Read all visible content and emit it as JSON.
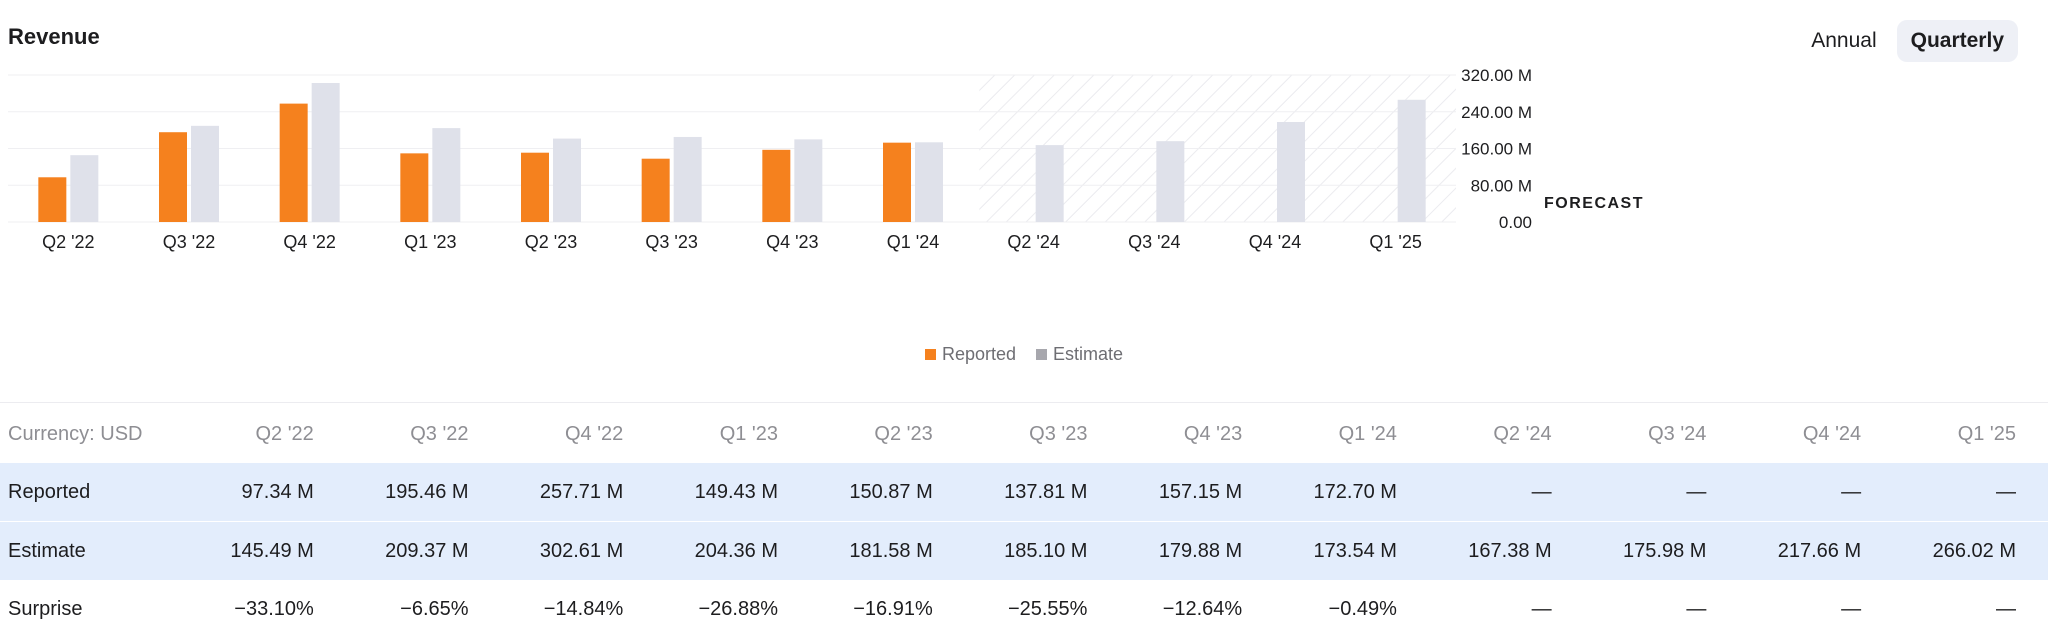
{
  "header": {
    "title": "Revenue",
    "toggle": [
      {
        "label": "Annual",
        "active": false
      },
      {
        "label": "Quarterly",
        "active": true
      }
    ]
  },
  "chart_data": {
    "type": "bar",
    "categories": [
      "Q2 '22",
      "Q3 '22",
      "Q4 '22",
      "Q1 '23",
      "Q2 '23",
      "Q3 '23",
      "Q4 '23",
      "Q1 '24",
      "Q2 '24",
      "Q3 '24",
      "Q4 '24",
      "Q1 '25"
    ],
    "series": [
      {
        "name": "Reported",
        "color": "#f5811e",
        "values": [
          97.34,
          195.46,
          257.71,
          149.43,
          150.87,
          137.81,
          157.15,
          172.7,
          null,
          null,
          null,
          null
        ]
      },
      {
        "name": "Estimate",
        "color": "#dfe1ea",
        "values": [
          145.49,
          209.37,
          302.61,
          204.36,
          181.58,
          185.1,
          179.88,
          173.54,
          167.38,
          175.98,
          217.66,
          266.02
        ]
      }
    ],
    "yticks": [
      "320.00 M",
      "240.00 M",
      "160.00 M",
      "80.00 M",
      "0.00"
    ],
    "ylim": [
      0,
      320
    ],
    "forecast_label": "FORECAST",
    "forecast_start_index": 8,
    "grid": true,
    "legend_position": "bottom"
  },
  "legend": [
    {
      "label": "Reported",
      "color": "#f5811e"
    },
    {
      "label": "Estimate",
      "color": "#a7a7ad"
    }
  ],
  "table": {
    "currency_label": "Currency: USD",
    "columns": [
      "Q2 '22",
      "Q3 '22",
      "Q4 '22",
      "Q1 '23",
      "Q2 '23",
      "Q3 '23",
      "Q4 '23",
      "Q1 '24",
      "Q2 '24",
      "Q3 '24",
      "Q4 '24",
      "Q1 '25"
    ],
    "rows": [
      {
        "label": "Reported",
        "highlight": true,
        "cells": [
          "97.34 M",
          "195.46 M",
          "257.71 M",
          "149.43 M",
          "150.87 M",
          "137.81 M",
          "157.15 M",
          "172.70 M",
          "—",
          "—",
          "—",
          "—"
        ]
      },
      {
        "label": "Estimate",
        "highlight": true,
        "cells": [
          "145.49 M",
          "209.37 M",
          "302.61 M",
          "204.36 M",
          "181.58 M",
          "185.10 M",
          "179.88 M",
          "173.54 M",
          "167.38 M",
          "175.98 M",
          "217.66 M",
          "266.02 M"
        ]
      },
      {
        "label": "Surprise",
        "highlight": false,
        "cells": [
          "−33.10%",
          "−6.65%",
          "−14.84%",
          "−26.88%",
          "−16.91%",
          "−25.55%",
          "−12.64%",
          "−0.49%",
          "—",
          "—",
          "—",
          "—"
        ]
      }
    ]
  }
}
